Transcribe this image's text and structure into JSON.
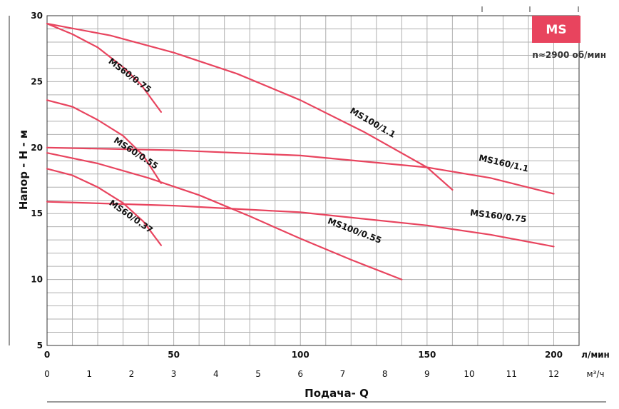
{
  "chart_data": {
    "type": "line",
    "badge": "MS",
    "speed_note": "n≈2900 об/мин",
    "ylabel": "Напор - Н - м",
    "xlabel": "Подача- Q",
    "x_unit_primary": "л/мин",
    "x_unit_secondary": "м³/ч",
    "xlim": [
      0,
      210
    ],
    "ylim": [
      5,
      30
    ],
    "x_ticks_lmin": [
      "0",
      "50",
      "100",
      "150",
      "200"
    ],
    "x_ticks_m3h": [
      "0",
      "1",
      "2",
      "3",
      "4",
      "5",
      "6",
      "7",
      "8",
      "9",
      "10",
      "11",
      "12"
    ],
    "y_ticks": [
      "5",
      "10",
      "15",
      "20",
      "25",
      "30"
    ],
    "colors": {
      "curve": "#e8445e",
      "grid": "#b0b0b0",
      "badge_bg": "#e8445e"
    },
    "grid": true,
    "series": [
      {
        "name": "MS60/0.75",
        "x": [
          0,
          10,
          20,
          30,
          37,
          45
        ],
        "y": [
          29.4,
          28.6,
          27.6,
          26.1,
          24.8,
          22.7
        ]
      },
      {
        "name": "MS60/0.55",
        "x": [
          0,
          10,
          20,
          30,
          38,
          45
        ],
        "y": [
          23.6,
          23.1,
          22.1,
          20.9,
          19.4,
          17.3
        ]
      },
      {
        "name": "MS60/0.37",
        "x": [
          0,
          10,
          20,
          30,
          38,
          45
        ],
        "y": [
          18.4,
          17.9,
          17.0,
          15.8,
          14.4,
          12.6
        ]
      },
      {
        "name": "MS100/1.1",
        "x": [
          0,
          25,
          50,
          75,
          100,
          125,
          150,
          160
        ],
        "y": [
          29.4,
          28.5,
          27.2,
          25.6,
          23.6,
          21.2,
          18.5,
          16.8
        ]
      },
      {
        "name": "MS100/0.55",
        "x": [
          0,
          20,
          40,
          60,
          80,
          100,
          120,
          140
        ],
        "y": [
          19.6,
          18.8,
          17.7,
          16.4,
          14.8,
          13.1,
          11.5,
          10.0
        ]
      },
      {
        "name": "MS160/1.1",
        "x": [
          0,
          50,
          100,
          150,
          175,
          200
        ],
        "y": [
          20.0,
          19.8,
          19.4,
          18.5,
          17.7,
          16.5
        ]
      },
      {
        "name": "MS160/0.75",
        "x": [
          0,
          50,
          100,
          150,
          175,
          200
        ],
        "y": [
          15.9,
          15.6,
          15.1,
          14.1,
          13.4,
          12.5
        ]
      }
    ]
  }
}
